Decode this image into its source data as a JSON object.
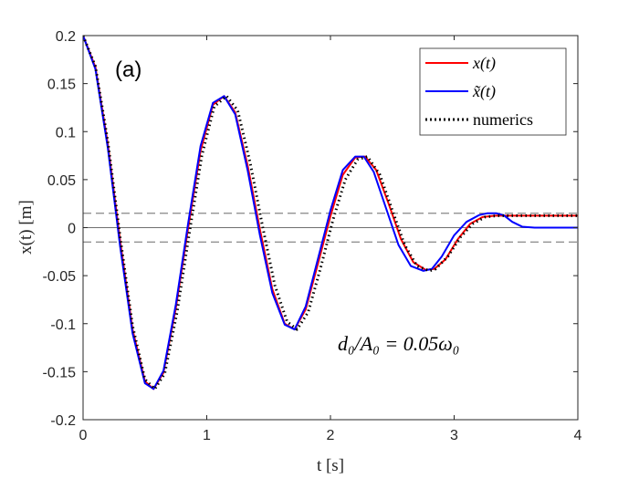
{
  "chart_data": {
    "type": "line",
    "title": "",
    "panel_label": "(a)",
    "annotation": "d₀/A₀ = 0.05ω₀",
    "xlabel": "t [s]",
    "ylabel": "x(t) [m]",
    "xlim": [
      0,
      4
    ],
    "ylim": [
      -0.2,
      0.2
    ],
    "xticks": [
      0,
      1,
      2,
      3,
      4
    ],
    "xtick_labels": [
      "0",
      "1",
      "2",
      "3",
      "4"
    ],
    "yticks": [
      0.2,
      0.15,
      0.1,
      0.05,
      0,
      -0.05,
      -0.1,
      -0.15,
      -0.2
    ],
    "ytick_labels": [
      "0.2",
      "0.15",
      "0.1",
      "0.05",
      "0",
      "-0.05",
      "-0.1",
      "-0.15",
      "-0.2"
    ],
    "grid": false,
    "legend_position": "top-right",
    "reference_lines": [
      {
        "y": 0.0149,
        "style": "dashed"
      },
      {
        "y": 0,
        "style": "solid"
      },
      {
        "y": -0.0149,
        "style": "dashed"
      }
    ],
    "series": [
      {
        "name": "x(t)",
        "color": "#ff0000",
        "style": "solid",
        "x": [
          0.0,
          0.1,
          0.2,
          0.3,
          0.4,
          0.5,
          0.57,
          0.65,
          0.75,
          0.85,
          0.95,
          1.05,
          1.14,
          1.23,
          1.33,
          1.43,
          1.53,
          1.63,
          1.71,
          1.8,
          1.9,
          2.0,
          2.1,
          2.2,
          2.28,
          2.37,
          2.47,
          2.57,
          2.67,
          2.77,
          2.84,
          2.93,
          3.03,
          3.13,
          3.23,
          3.33,
          3.42,
          3.5,
          3.6,
          3.8,
          4.0
        ],
        "y": [
          0.2,
          0.167,
          0.087,
          -0.014,
          -0.106,
          -0.16,
          -0.168,
          -0.151,
          -0.084,
          0.0,
          0.08,
          0.128,
          0.137,
          0.12,
          0.065,
          -0.002,
          -0.064,
          -0.1,
          -0.106,
          -0.085,
          -0.037,
          0.012,
          0.055,
          0.073,
          0.074,
          0.06,
          0.025,
          -0.012,
          -0.036,
          -0.044,
          -0.043,
          -0.033,
          -0.012,
          0.004,
          0.011,
          0.0125,
          0.0125,
          0.0125,
          0.0125,
          0.0125,
          0.0125
        ]
      },
      {
        "name": "x̃(t)",
        "color": "#0000ff",
        "style": "solid",
        "x": [
          0.0,
          0.1,
          0.2,
          0.3,
          0.4,
          0.5,
          0.57,
          0.65,
          0.75,
          0.85,
          0.95,
          1.05,
          1.14,
          1.23,
          1.33,
          1.43,
          1.53,
          1.63,
          1.71,
          1.8,
          1.9,
          2.0,
          2.1,
          2.2,
          2.27,
          2.35,
          2.45,
          2.55,
          2.65,
          2.75,
          2.82,
          2.9,
          3.0,
          3.1,
          3.2,
          3.27,
          3.34,
          3.4,
          3.47,
          3.55,
          3.65,
          3.8,
          4.0
        ],
        "y": [
          0.2,
          0.165,
          0.083,
          -0.02,
          -0.11,
          -0.162,
          -0.168,
          -0.149,
          -0.08,
          0.005,
          0.085,
          0.13,
          0.137,
          0.118,
          0.06,
          -0.008,
          -0.068,
          -0.101,
          -0.106,
          -0.082,
          -0.032,
          0.018,
          0.06,
          0.074,
          0.074,
          0.058,
          0.02,
          -0.018,
          -0.04,
          -0.045,
          -0.043,
          -0.03,
          -0.008,
          0.006,
          0.013,
          0.015,
          0.015,
          0.013,
          0.006,
          0.001,
          0.0,
          0.0,
          0.0
        ]
      },
      {
        "name": "numerics",
        "color": "#000000",
        "style": "dotted",
        "x": [
          0.0,
          0.1,
          0.2,
          0.3,
          0.4,
          0.5,
          0.58,
          0.66,
          0.76,
          0.86,
          0.96,
          1.06,
          1.16,
          1.25,
          1.35,
          1.45,
          1.55,
          1.65,
          1.73,
          1.82,
          1.92,
          2.02,
          2.12,
          2.22,
          2.3,
          2.4,
          2.5,
          2.6,
          2.7,
          2.8,
          2.85,
          2.95,
          3.05,
          3.15,
          3.25,
          3.35,
          3.45,
          3.55,
          3.7,
          3.85,
          4.0
        ],
        "y": [
          0.2,
          0.168,
          0.09,
          -0.01,
          -0.102,
          -0.158,
          -0.168,
          -0.152,
          -0.088,
          -0.005,
          0.075,
          0.126,
          0.137,
          0.122,
          0.068,
          0.002,
          -0.06,
          -0.098,
          -0.106,
          -0.088,
          -0.042,
          0.008,
          0.05,
          0.071,
          0.074,
          0.055,
          0.018,
          -0.018,
          -0.04,
          -0.045,
          -0.043,
          -0.03,
          -0.01,
          0.004,
          0.011,
          0.0125,
          0.0125,
          0.0125,
          0.0125,
          0.0125,
          0.0125
        ]
      }
    ]
  }
}
